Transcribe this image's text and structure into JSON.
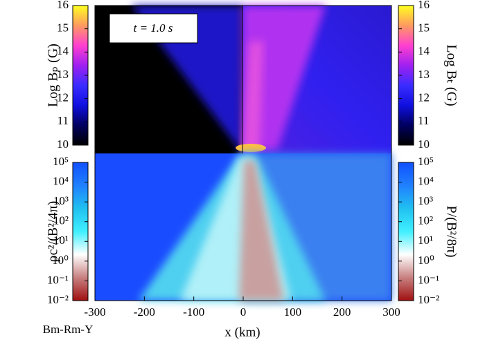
{
  "chart_data": {
    "type": "image",
    "annotations": [
      "t =  1.0 s",
      "Bm-Rm-Y"
    ],
    "xlabel": "x (km)",
    "xlim": [
      -300,
      300
    ],
    "xticks": [
      -300,
      -200,
      -100,
      0,
      100,
      200,
      300
    ],
    "colorbars": [
      {
        "label": "Log Bₚ (G)",
        "side": "left",
        "panel": "top",
        "lim": [
          10,
          16
        ],
        "ticks": [
          10,
          11,
          12,
          13,
          14,
          15,
          16
        ],
        "colors": [
          "#000000",
          "#000060",
          "#1010e0",
          "#3a2cff",
          "#a020f0",
          "#ff40d0",
          "#ff9a60",
          "#ffff20"
        ]
      },
      {
        "label": "Log Bₜ (G)",
        "side": "right",
        "panel": "top",
        "lim": [
          10,
          16
        ],
        "ticks": [
          10,
          11,
          12,
          13,
          14,
          15,
          16
        ],
        "colors": [
          "#000000",
          "#000060",
          "#1010e0",
          "#3a2cff",
          "#a020f0",
          "#ff40d0",
          "#ff9a60",
          "#ffff20"
        ]
      },
      {
        "label": "ρc²/(B²/4π)",
        "side": "left",
        "panel": "bottom",
        "log": true,
        "lim": [
          0.01,
          100000
        ],
        "ticks": [
          {
            "value": 0.01,
            "label": "10⁻²"
          },
          {
            "value": 0.1,
            "label": "10⁻¹"
          },
          {
            "value": 1,
            "label": "10⁰"
          },
          {
            "value": 10,
            "label": "10¹"
          },
          {
            "value": 100,
            "label": "10²"
          },
          {
            "value": 1000,
            "label": "10³"
          },
          {
            "value": 10000,
            "label": "10⁴"
          },
          {
            "value": 100000,
            "label": "10⁵"
          }
        ],
        "colors": [
          "#a01010",
          "#c88080",
          "#ffffff",
          "#40f0ff",
          "#20c0f0",
          "#2080ff",
          "#1050ff"
        ]
      },
      {
        "label": "P/(B²/8π)",
        "side": "right",
        "panel": "bottom",
        "log": true,
        "lim": [
          0.01,
          100000
        ],
        "ticks": [
          {
            "value": 0.01,
            "label": "10⁻²"
          },
          {
            "value": 0.1,
            "label": "10⁻¹"
          },
          {
            "value": 1,
            "label": "10⁰"
          },
          {
            "value": 10,
            "label": "10¹"
          },
          {
            "value": 100,
            "label": "10²"
          },
          {
            "value": 1000,
            "label": "10³"
          },
          {
            "value": 10000,
            "label": "10⁴"
          },
          {
            "value": 100000,
            "label": "10⁵"
          }
        ],
        "colors": [
          "#a01010",
          "#c88080",
          "#ffffff",
          "#40f0ff",
          "#20c0f0",
          "#2080ff",
          "#1050ff"
        ]
      }
    ]
  }
}
